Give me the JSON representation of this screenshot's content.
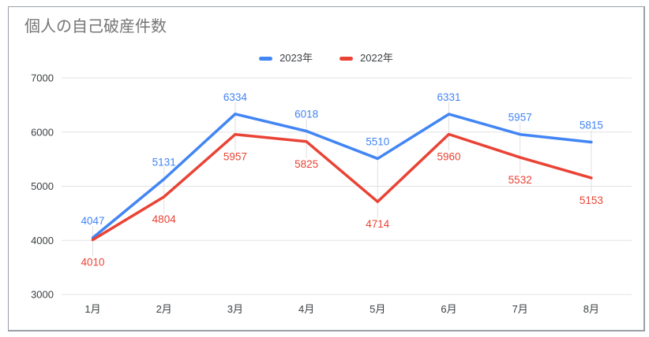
{
  "chart": {
    "background": "#ffffff",
    "border_color": "#9aa0a6",
    "title_color": "#757575",
    "grid_color": "#e3e3e3",
    "leader_line_color": "#e0e0e0",
    "axis_text_color": "#3c4043",
    "legend_text_color": "#3c4043"
  },
  "chart_data": {
    "type": "line",
    "title": "個人の自己破産件数",
    "categories": [
      "1月",
      "2月",
      "3月",
      "4月",
      "5月",
      "6月",
      "7月",
      "8月"
    ],
    "series": [
      {
        "name": "2023年",
        "color": "#4285F4",
        "values": [
          4047,
          5131,
          6334,
          6018,
          5510,
          6331,
          5957,
          5815
        ]
      },
      {
        "name": "2022年",
        "color": "#EA4335",
        "values": [
          4010,
          4804,
          5957,
          5825,
          4714,
          5960,
          5532,
          5153
        ]
      }
    ],
    "xlabel": "",
    "ylabel": "",
    "ylim": [
      3000,
      7000
    ],
    "yticks": [
      3000,
      4000,
      5000,
      6000,
      7000
    ],
    "grid": "horizontal-only",
    "legend_position": "top-center",
    "data_labels": true
  }
}
